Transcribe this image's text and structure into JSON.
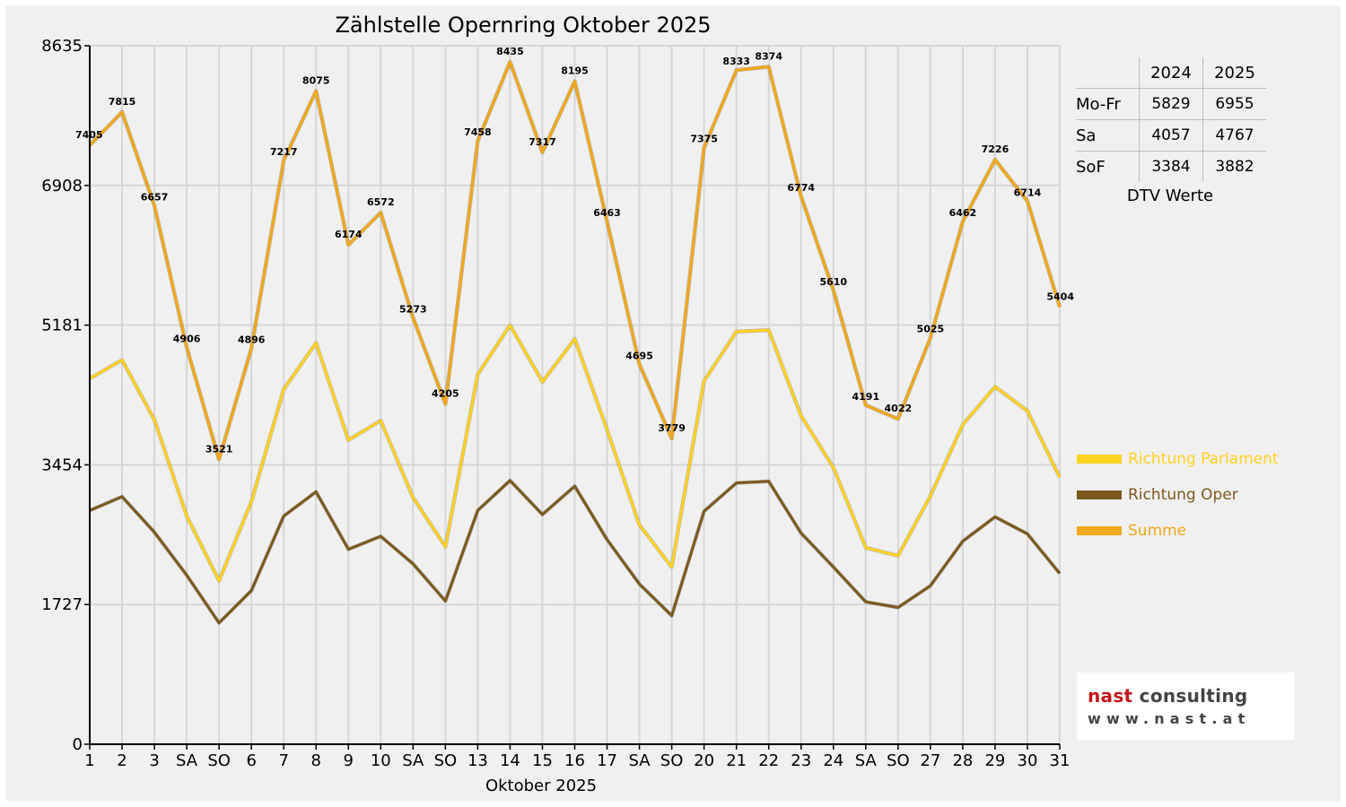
{
  "chart_data": {
    "type": "line",
    "title": "Zählstelle Opernring Oktober 2025",
    "xlabel": "Oktober 2025",
    "ylabel": "",
    "ylim": [
      0,
      8635
    ],
    "yticks": [
      0,
      1727,
      3454,
      5181,
      6908,
      8635
    ],
    "x": [
      1,
      2,
      3,
      4,
      5,
      6,
      7,
      8,
      9,
      10,
      11,
      12,
      13,
      14,
      15,
      16,
      17,
      18,
      19,
      20,
      21,
      22,
      23,
      24,
      25,
      26,
      27,
      28,
      29,
      30,
      31
    ],
    "x_tick_labels": [
      "1",
      "2",
      "3",
      "SA",
      "SO",
      "6",
      "7",
      "8",
      "9",
      "10",
      "SA",
      "SO",
      "13",
      "14",
      "15",
      "16",
      "17",
      "SA",
      "SO",
      "20",
      "21",
      "22",
      "23",
      "24",
      "SA",
      "SO",
      "27",
      "28",
      "29",
      "30",
      "31"
    ],
    "weekend_colors": {
      "SA": "#000000",
      "SO": "#ff0000"
    },
    "grid": true,
    "legend_position": "right",
    "series": [
      {
        "name": "Richtung Parlament",
        "color": "#ffd21f",
        "values": [
          4520,
          4750,
          4010,
          2820,
          2020,
          3000,
          4390,
          4960,
          3760,
          4000,
          3050,
          2440,
          4570,
          5180,
          4480,
          5010,
          3890,
          2710,
          2190,
          4490,
          5100,
          5120,
          4060,
          3420,
          2430,
          2330,
          3070,
          3950,
          4420,
          4120,
          3300
        ]
      },
      {
        "name": "Richtung Oper",
        "color": "#7b5a1f",
        "values": [
          2890,
          3060,
          2620,
          2090,
          1500,
          1900,
          2820,
          3120,
          2410,
          2570,
          2230,
          1770,
          2890,
          3260,
          2840,
          3190,
          2530,
          1980,
          1590,
          2880,
          3230,
          3250,
          2610,
          2190,
          1760,
          1690,
          1960,
          2510,
          2810,
          2600,
          2110
        ]
      },
      {
        "name": "Summe",
        "color": "#f0a81c",
        "values": [
          7405,
          7815,
          6657,
          4906,
          3521,
          4896,
          7217,
          8075,
          6174,
          6572,
          5273,
          4205,
          7458,
          8435,
          7317,
          8195,
          6463,
          4695,
          3779,
          7375,
          8333,
          8374,
          6774,
          5610,
          4191,
          4022,
          5025,
          6462,
          7226,
          6714,
          5404
        ]
      }
    ],
    "data_labels": [
      "7405",
      "7815",
      "6657",
      "4906",
      "3521",
      "4896",
      "7217",
      "8075",
      "6174",
      "6572",
      "5273",
      "4205",
      "7458",
      "8435",
      "7317",
      "8195",
      "6463",
      "4695",
      "3779",
      "7375",
      "8333",
      "8374",
      "6774",
      "5610",
      "4191",
      "4022",
      "5025",
      "6462",
      "7226",
      "6714",
      "5404"
    ]
  },
  "dtv_table": {
    "headers": [
      "",
      "2024",
      "2025"
    ],
    "rows": [
      {
        "label": "Mo-Fr",
        "v2024": "5829",
        "v2025": "6955"
      },
      {
        "label": "Sa",
        "v2024": "4057",
        "v2025": "4767"
      },
      {
        "label": "SoF",
        "v2024": "3384",
        "v2025": "3882"
      }
    ],
    "caption": "DTV Werte"
  },
  "logo": {
    "brand_part1": "nast",
    "brand_part2": "consulting",
    "url": "www.nast.at"
  }
}
